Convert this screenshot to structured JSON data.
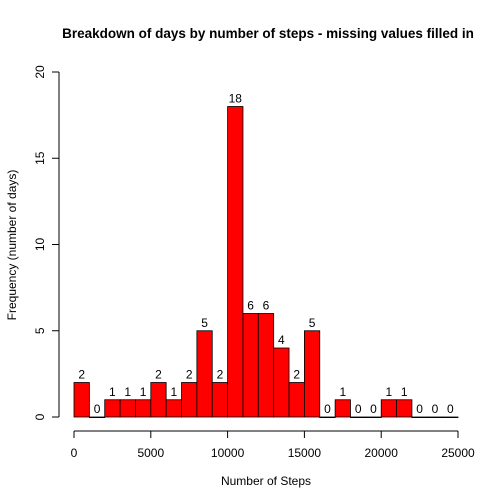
{
  "chart_data": {
    "type": "bar",
    "title": "Breakdown of days by number of steps - missing values filled in",
    "xlabel": "Number of Steps",
    "ylabel": "Frequency (number of days)",
    "bar_color": "#ff0000",
    "bin_width": 1000,
    "x_start": 0,
    "xlim": [
      0,
      25000
    ],
    "ylim": [
      0,
      20
    ],
    "xticks": [
      0,
      5000,
      10000,
      15000,
      20000,
      25000
    ],
    "yticks": [
      0,
      5,
      10,
      15,
      20
    ],
    "values": [
      2,
      0,
      1,
      1,
      1,
      2,
      1,
      2,
      5,
      2,
      18,
      6,
      6,
      4,
      2,
      5,
      0,
      1,
      0,
      0,
      1,
      1,
      0,
      0,
      0
    ],
    "grid": false
  }
}
